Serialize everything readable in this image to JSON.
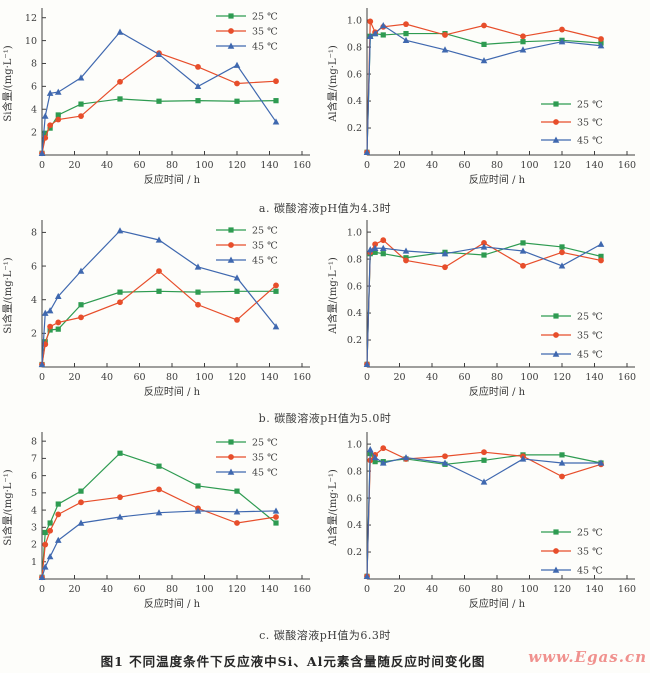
{
  "figure": {
    "caption": "图1  不同温度条件下反应液中Si、Al元素含量随反应时间变化图",
    "watermark": "www.Egas.cn"
  },
  "captions": {
    "a": "a. 碳酸溶液pH值为4.3时",
    "b": "b. 碳酸溶液pH值为5.0时",
    "c": "c. 碳酸溶液pH值为6.3时"
  },
  "style": {
    "axis_color": "#3f3f3f",
    "green": "#2e9b51",
    "red": "#e74e2b",
    "blue": "#3f68af",
    "background": "#fdfdfa",
    "watermark_color": "#f0918e"
  },
  "chart_data": [
    {
      "id": "a-si",
      "type": "line",
      "xlabel": "反应时间 / h",
      "ylabel": "Si含量/(mg·L⁻¹)",
      "xlim": [
        0,
        160
      ],
      "ylim": [
        0,
        12.5
      ],
      "grid": false,
      "xticks": [
        0,
        20,
        40,
        60,
        80,
        100,
        120,
        140,
        160
      ],
      "yticks": [
        2,
        4,
        6,
        8,
        10,
        12
      ],
      "ydecimals": 0,
      "legend_pos": {
        "x": 216,
        "y": 16,
        "dy": 15
      },
      "x": [
        0,
        2,
        5,
        10,
        24,
        48,
        72,
        96,
        120,
        144
      ],
      "series": [
        {
          "name": "25 ℃",
          "marker": "square",
          "color": "#2e9b51",
          "values": [
            0.15,
            1.9,
            2.35,
            3.5,
            4.45,
            4.9,
            4.7,
            4.75,
            4.7,
            4.75
          ]
        },
        {
          "name": "35 ℃",
          "marker": "circle",
          "color": "#e74e2b",
          "values": [
            0.15,
            1.5,
            2.6,
            3.1,
            3.4,
            6.4,
            8.9,
            7.7,
            6.25,
            6.45
          ]
        },
        {
          "name": "45 ℃",
          "marker": "triangle",
          "color": "#3f68af",
          "values": [
            0.15,
            3.4,
            5.4,
            5.5,
            6.75,
            10.75,
            8.8,
            6.0,
            7.85,
            2.9
          ]
        }
      ]
    },
    {
      "id": "a-al",
      "type": "line",
      "xlabel": "反应时间 / h",
      "ylabel": "Al含量/(mg·L⁻¹)",
      "xlim": [
        0,
        160
      ],
      "ylim": [
        0,
        1.06
      ],
      "grid": false,
      "xticks": [
        0,
        20,
        40,
        60,
        80,
        100,
        120,
        140,
        160
      ],
      "yticks": [
        0.2,
        0.4,
        0.6,
        0.8,
        1.0
      ],
      "ydecimals": 1,
      "legend_pos": {
        "x": 216,
        "y": 104,
        "dy": 18
      },
      "x": [
        0,
        2,
        5,
        10,
        24,
        48,
        72,
        96,
        120,
        144
      ],
      "series": [
        {
          "name": "25 ℃",
          "marker": "square",
          "color": "#2e9b51",
          "values": [
            0.02,
            0.88,
            0.9,
            0.89,
            0.9,
            0.9,
            0.82,
            0.84,
            0.85,
            0.83
          ]
        },
        {
          "name": "35 ℃",
          "marker": "circle",
          "color": "#e74e2b",
          "values": [
            0.02,
            0.99,
            0.91,
            0.95,
            0.97,
            0.89,
            0.96,
            0.88,
            0.93,
            0.86
          ]
        },
        {
          "name": "45 ℃",
          "marker": "triangle",
          "color": "#3f68af",
          "values": [
            0.02,
            0.88,
            0.9,
            0.96,
            0.85,
            0.78,
            0.7,
            0.78,
            0.84,
            0.81
          ]
        }
      ]
    },
    {
      "id": "b-si",
      "type": "line",
      "xlabel": "反应时间 / h",
      "ylabel": "Si含量/(mg·L⁻¹)",
      "xlim": [
        0,
        160
      ],
      "ylim": [
        0,
        8.5
      ],
      "grid": false,
      "xticks": [
        0,
        20,
        40,
        60,
        80,
        100,
        120,
        140,
        160
      ],
      "yticks": [
        2,
        4,
        6,
        8
      ],
      "ydecimals": 0,
      "legend_pos": {
        "x": 216,
        "y": 18,
        "dy": 15
      },
      "x": [
        0,
        2,
        5,
        10,
        24,
        48,
        72,
        96,
        120,
        144
      ],
      "series": [
        {
          "name": "25 ℃",
          "marker": "square",
          "color": "#2e9b51",
          "values": [
            0.15,
            1.5,
            2.2,
            2.25,
            3.7,
            4.45,
            4.5,
            4.45,
            4.5,
            4.5
          ]
        },
        {
          "name": "35 ℃",
          "marker": "circle",
          "color": "#e74e2b",
          "values": [
            0.15,
            1.35,
            2.4,
            2.65,
            2.95,
            3.85,
            5.7,
            3.7,
            2.8,
            4.85
          ]
        },
        {
          "name": "45 ℃",
          "marker": "triangle",
          "color": "#3f68af",
          "values": [
            0.15,
            3.2,
            3.35,
            4.2,
            5.7,
            8.1,
            7.55,
            5.95,
            5.3,
            2.4
          ]
        }
      ]
    },
    {
      "id": "b-al",
      "type": "line",
      "xlabel": "反应时间 / h",
      "ylabel": "Al含量/(mg·L⁻¹)",
      "xlim": [
        0,
        160
      ],
      "ylim": [
        0,
        1.06
      ],
      "grid": false,
      "xticks": [
        0,
        20,
        40,
        60,
        80,
        100,
        120,
        140,
        160
      ],
      "yticks": [
        0.2,
        0.4,
        0.6,
        0.8,
        1.0
      ],
      "ydecimals": 1,
      "legend_pos": {
        "x": 216,
        "y": 104,
        "dy": 19
      },
      "x": [
        0,
        2,
        5,
        10,
        24,
        48,
        72,
        96,
        120,
        144
      ],
      "series": [
        {
          "name": "25 ℃",
          "marker": "square",
          "color": "#2e9b51",
          "values": [
            0.02,
            0.84,
            0.85,
            0.84,
            0.81,
            0.85,
            0.83,
            0.92,
            0.89,
            0.82
          ]
        },
        {
          "name": "35 ℃",
          "marker": "circle",
          "color": "#e74e2b",
          "values": [
            0.02,
            0.85,
            0.91,
            0.94,
            0.79,
            0.74,
            0.92,
            0.75,
            0.85,
            0.79
          ]
        },
        {
          "name": "45 ℃",
          "marker": "triangle",
          "color": "#3f68af",
          "values": [
            0.02,
            0.87,
            0.88,
            0.88,
            0.86,
            0.84,
            0.89,
            0.86,
            0.75,
            0.91
          ]
        }
      ]
    },
    {
      "id": "c-si",
      "type": "line",
      "xlabel": "反应时间 / h",
      "ylabel": "Si含量/(mg·L⁻¹)",
      "xlim": [
        0,
        160
      ],
      "ylim": [
        0,
        8.3
      ],
      "grid": false,
      "xticks": [
        0,
        20,
        40,
        60,
        80,
        100,
        120,
        140,
        160
      ],
      "yticks": [
        1,
        2,
        3,
        4,
        5,
        6,
        7,
        8
      ],
      "ydecimals": 0,
      "legend_pos": {
        "x": 216,
        "y": 18,
        "dy": 15
      },
      "x": [
        0,
        2,
        5,
        10,
        24,
        48,
        72,
        96,
        120,
        144
      ],
      "series": [
        {
          "name": "25 ℃",
          "marker": "square",
          "color": "#2e9b51",
          "values": [
            0.1,
            2.7,
            3.25,
            4.35,
            5.1,
            7.3,
            6.55,
            5.4,
            5.1,
            3.25
          ]
        },
        {
          "name": "35 ℃",
          "marker": "circle",
          "color": "#e74e2b",
          "values": [
            0.1,
            2.0,
            2.8,
            3.75,
            4.45,
            4.75,
            5.2,
            4.1,
            3.25,
            3.6
          ]
        },
        {
          "name": "45 ℃",
          "marker": "triangle",
          "color": "#3f68af",
          "values": [
            0.1,
            0.7,
            1.3,
            2.25,
            3.25,
            3.6,
            3.85,
            3.95,
            3.9,
            3.95
          ]
        }
      ]
    },
    {
      "id": "c-al",
      "type": "line",
      "xlabel": "反应时间 / h",
      "ylabel": "Al含量/(mg·L⁻¹)",
      "xlim": [
        0,
        160
      ],
      "ylim": [
        0,
        1.06
      ],
      "grid": false,
      "xticks": [
        0,
        20,
        40,
        60,
        80,
        100,
        120,
        140,
        160
      ],
      "yticks": [
        0.2,
        0.4,
        0.6,
        0.8,
        1.0
      ],
      "ydecimals": 1,
      "legend_pos": {
        "x": 216,
        "y": 108,
        "dy": 19
      },
      "x": [
        0,
        2,
        5,
        10,
        24,
        48,
        72,
        96,
        120,
        144
      ],
      "series": [
        {
          "name": "25 ℃",
          "marker": "square",
          "color": "#2e9b51",
          "values": [
            0.02,
            0.93,
            0.87,
            0.87,
            0.89,
            0.85,
            0.88,
            0.92,
            0.92,
            0.86
          ]
        },
        {
          "name": "35 ℃",
          "marker": "circle",
          "color": "#e74e2b",
          "values": [
            0.02,
            0.88,
            0.92,
            0.97,
            0.89,
            0.91,
            0.94,
            0.91,
            0.76,
            0.85
          ]
        },
        {
          "name": "45 ℃",
          "marker": "triangle",
          "color": "#3f68af",
          "values": [
            0.02,
            0.96,
            0.9,
            0.86,
            0.9,
            0.86,
            0.72,
            0.89,
            0.86,
            0.86
          ]
        }
      ]
    }
  ]
}
